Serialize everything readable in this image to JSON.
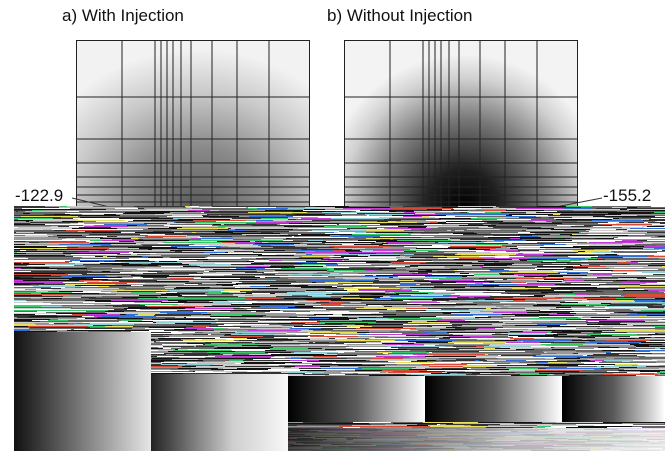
{
  "panels": [
    {
      "title": "a) With Injection",
      "value": "-122.9"
    },
    {
      "title": "b) Without Injection",
      "value": "-155.2"
    }
  ]
}
